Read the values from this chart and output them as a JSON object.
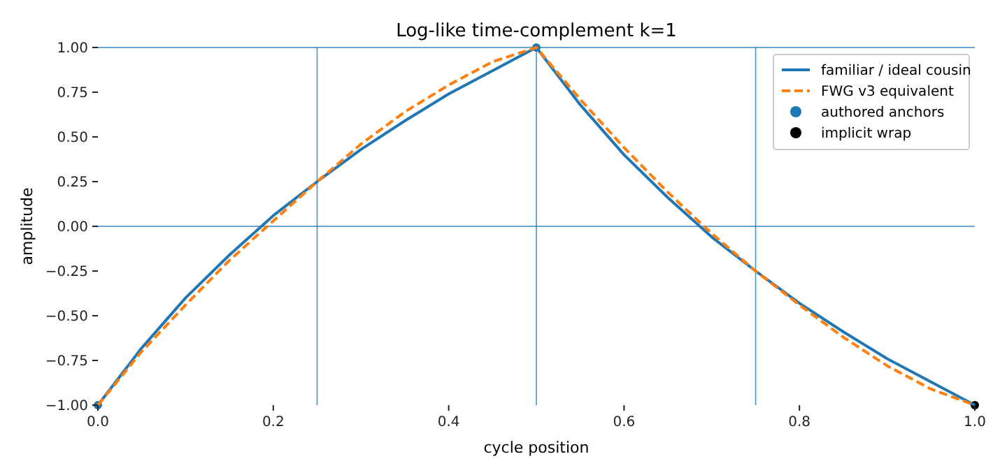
{
  "chart_data": {
    "type": "line",
    "title": "Log-like time-complement k=1",
    "xlabel": "cycle position",
    "ylabel": "amplitude",
    "x": [
      0,
      0.05,
      0.1,
      0.15,
      0.2,
      0.25,
      0.3,
      0.35,
      0.4,
      0.45,
      0.5,
      0.55,
      0.6,
      0.65,
      0.7,
      0.75,
      0.8,
      0.85,
      0.9,
      0.95,
      1
    ],
    "series": [
      {
        "name": "familiar / ideal cousin",
        "color": "#1f77b4",
        "line_style": "solid",
        "values": [
          -1,
          -0.68,
          -0.4,
          -0.16,
          0.06,
          0.25,
          0.43,
          0.59,
          0.74,
          0.87,
          1,
          0.68,
          0.4,
          0.16,
          -0.06,
          -0.25,
          -0.43,
          -0.59,
          -0.74,
          -0.87,
          -1
        ]
      },
      {
        "name": "FWG v3 equivalent",
        "color": "#ff7f0e",
        "line_style": "dashed",
        "values": [
          -1,
          -0.7,
          -0.44,
          -0.19,
          0.03,
          0.25,
          0.46,
          0.64,
          0.79,
          0.92,
          1,
          0.71,
          0.44,
          0.19,
          -0.04,
          -0.25,
          -0.44,
          -0.62,
          -0.78,
          -0.91,
          -1
        ]
      },
      {
        "name": "authored anchors",
        "type": "scatter",
        "marker": "circle",
        "color": "#1f77b4",
        "x": [
          0,
          0.5
        ],
        "values": [
          -1,
          1
        ]
      },
      {
        "name": "implicit wrap",
        "type": "scatter",
        "marker": "circle",
        "color": "#000000",
        "x": [
          1
        ],
        "values": [
          -1
        ]
      }
    ],
    "xlim": [
      0,
      1
    ],
    "ylim": [
      -1,
      1
    ],
    "xticks": [
      {
        "value": 0,
        "label": "0.0"
      },
      {
        "value": 0.2,
        "label": "0.2"
      },
      {
        "value": 0.4,
        "label": "0.4"
      },
      {
        "value": 0.6,
        "label": "0.6"
      },
      {
        "value": 0.8,
        "label": "0.8"
      },
      {
        "value": 1,
        "label": "1.0"
      }
    ],
    "yticks": [
      {
        "value": -1,
        "label": "−1.00"
      },
      {
        "value": -0.75,
        "label": "−0.75"
      },
      {
        "value": -0.5,
        "label": "−0.50"
      },
      {
        "value": -0.25,
        "label": "−0.25"
      },
      {
        "value": 0,
        "label": "0.00"
      },
      {
        "value": 0.25,
        "label": "0.25"
      },
      {
        "value": 0.5,
        "label": "0.50"
      },
      {
        "value": 0.75,
        "label": "0.75"
      },
      {
        "value": 1,
        "label": "1.00"
      }
    ],
    "ref_lines": [
      {
        "axis": "x",
        "value": 0.25,
        "color": "#1f77b4"
      },
      {
        "axis": "x",
        "value": 0.5,
        "color": "#1f77b4"
      },
      {
        "axis": "x",
        "value": 0.75,
        "color": "#1f77b4"
      },
      {
        "axis": "y",
        "value": 0,
        "color": "#1f77b4"
      },
      {
        "axis": "y",
        "value": 1,
        "color": "#1f77b4"
      }
    ],
    "legend": "top right"
  }
}
